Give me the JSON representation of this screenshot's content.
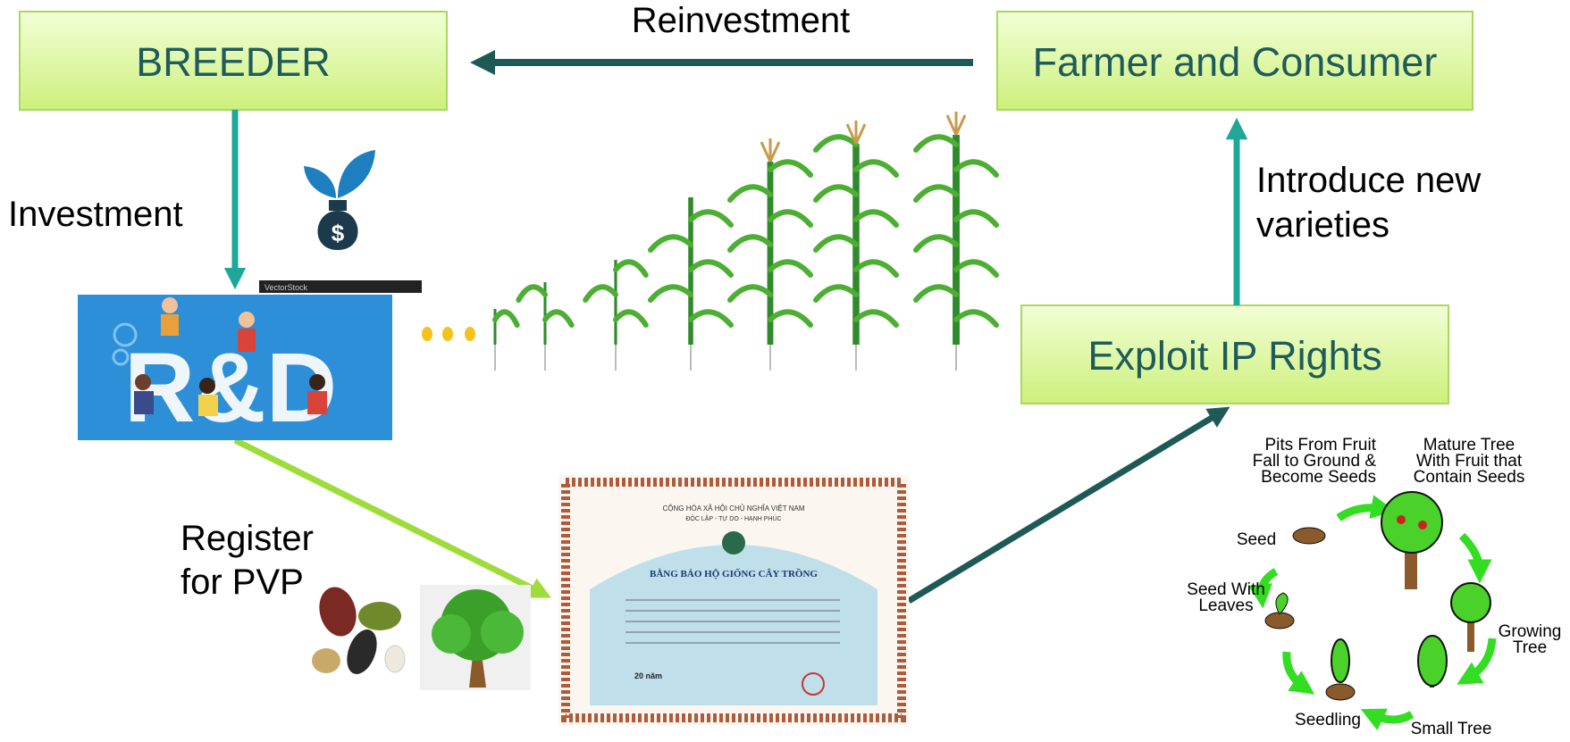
{
  "nodes": [
    {
      "label": "BREEDER"
    },
    {
      "label": "Farmer and Consumer"
    },
    {
      "label": "Exploit IP Rights"
    }
  ],
  "edges": [
    {
      "lines": [
        "Reinvestment"
      ]
    },
    {
      "lines": [
        "Investment"
      ]
    },
    {
      "lines": [
        "Introduce new",
        "varieties"
      ]
    },
    {
      "lines": [
        "Register",
        "for PVP"
      ]
    }
  ],
  "images": {
    "rd": "R&D",
    "stock": "VectorStock",
    "certificate": {
      "header": "CỘNG HÒA XÃ HỘI CHỦ NGHĨA VIỆT NAM",
      "motto": "ĐỘC LẬP - TỰ DO - HẠNH PHÚC",
      "title": "BẰNG BẢO HỘ GIỐNG CÂY TRỒNG",
      "term": "20 năm"
    }
  },
  "lifecycle": {
    "stages": [
      {
        "lines": [
          "Pits From Fruit",
          "Fall to Ground &",
          "Become Seeds"
        ]
      },
      {
        "lines": [
          "Mature Tree",
          "With Fruit that",
          "Contain Seeds"
        ]
      },
      {
        "lines": [
          "Seed"
        ]
      },
      {
        "lines": [
          "Seed With",
          "Leaves"
        ]
      },
      {
        "lines": [
          "Growing",
          "Tree"
        ]
      },
      {
        "lines": [
          "Seedling"
        ]
      },
      {
        "lines": [
          "Small Tree"
        ]
      }
    ]
  }
}
